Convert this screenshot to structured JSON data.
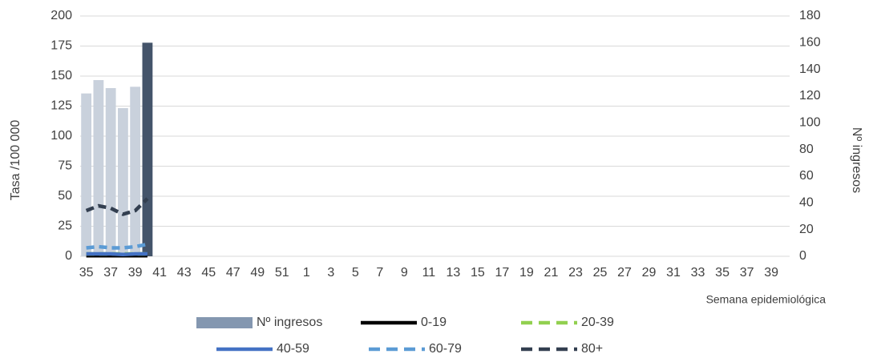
{
  "chart_data": {
    "type": "combo",
    "x_label": "Semana epidemiológica",
    "y_label": "Tasa /100 000",
    "y2_label": "Nº ingresos",
    "categories": [
      "35",
      null,
      "37",
      null,
      "39",
      null,
      "41",
      null,
      "43",
      null,
      "45",
      null,
      "47",
      null,
      "49",
      null,
      "51",
      null,
      "1",
      null,
      "3",
      null,
      "5",
      null,
      "7",
      null,
      "9",
      null,
      "11",
      null,
      "13",
      null,
      "15",
      null,
      "17",
      null,
      "19",
      null,
      "21",
      null,
      "23",
      null,
      "25",
      null,
      "27",
      null,
      "29",
      null,
      "31",
      null,
      "33",
      null,
      "35",
      null,
      "37",
      null,
      "39",
      null
    ],
    "ylim": [
      0,
      200
    ],
    "yticks": [
      0,
      25,
      50,
      75,
      100,
      125,
      150,
      175,
      200
    ],
    "y2lim": [
      0,
      180
    ],
    "y2ticks": [
      0,
      20,
      40,
      60,
      80,
      100,
      120,
      140,
      160,
      180
    ],
    "grid": true,
    "legend": "bottom",
    "series": [
      {
        "name": "Nº ingresos",
        "type": "bar",
        "axis": "y2",
        "color": "#8497b0",
        "colors": [
          "#c9d1dc",
          "#c9d1dc",
          "#c9d1dc",
          "#c9d1dc",
          "#c9d1dc",
          "#44546a"
        ],
        "values": [
          122,
          132,
          126,
          111,
          127,
          160,
          null,
          null,
          null,
          null,
          null,
          null,
          null,
          null,
          null,
          null,
          null,
          null,
          null,
          null,
          null,
          null,
          null,
          null,
          null,
          null,
          null,
          null,
          null,
          null,
          null,
          null,
          null,
          null,
          null,
          null,
          null,
          null,
          null,
          null,
          null,
          null,
          null,
          null,
          null,
          null,
          null,
          null,
          null,
          null,
          null,
          null,
          null,
          null,
          null,
          null,
          null,
          null
        ]
      },
      {
        "name": "0-19",
        "type": "line",
        "dash": false,
        "color": "#000000",
        "values": [
          0.5,
          0.5,
          0.5,
          0.5,
          0.5,
          0.5,
          null,
          null,
          null,
          null,
          null,
          null,
          null,
          null,
          null,
          null,
          null,
          null,
          null,
          null,
          null,
          null,
          null,
          null,
          null,
          null,
          null,
          null,
          null,
          null,
          null,
          null,
          null,
          null,
          null,
          null,
          null,
          null,
          null,
          null,
          null,
          null,
          null,
          null,
          null,
          null,
          null,
          null,
          null,
          null,
          null,
          null,
          null,
          null,
          null,
          null,
          null,
          null
        ]
      },
      {
        "name": "20-39",
        "type": "line",
        "dash": true,
        "color": "#92d050",
        "values": [
          2,
          2,
          2,
          2,
          2,
          2,
          null,
          null,
          null,
          null,
          null,
          null,
          null,
          null,
          null,
          null,
          null,
          null,
          null,
          null,
          null,
          null,
          null,
          null,
          null,
          null,
          null,
          null,
          null,
          null,
          null,
          null,
          null,
          null,
          null,
          null,
          null,
          null,
          null,
          null,
          null,
          null,
          null,
          null,
          null,
          null,
          null,
          null,
          null,
          null,
          null,
          null,
          null,
          null,
          null,
          null,
          null,
          null
        ]
      },
      {
        "name": "40-59",
        "type": "line",
        "dash": false,
        "color": "#4472c4",
        "values": [
          2,
          2,
          2,
          1.5,
          2,
          2,
          null,
          null,
          null,
          null,
          null,
          null,
          null,
          null,
          null,
          null,
          null,
          null,
          null,
          null,
          null,
          null,
          null,
          null,
          null,
          null,
          null,
          null,
          null,
          null,
          null,
          null,
          null,
          null,
          null,
          null,
          null,
          null,
          null,
          null,
          null,
          null,
          null,
          null,
          null,
          null,
          null,
          null,
          null,
          null,
          null,
          null,
          null,
          null,
          null,
          null,
          null,
          null
        ]
      },
      {
        "name": "60-79",
        "type": "line",
        "dash": true,
        "color": "#5b9bd5",
        "values": [
          7,
          8,
          7,
          7,
          8,
          10,
          null,
          null,
          null,
          null,
          null,
          null,
          null,
          null,
          null,
          null,
          null,
          null,
          null,
          null,
          null,
          null,
          null,
          null,
          null,
          null,
          null,
          null,
          null,
          null,
          null,
          null,
          null,
          null,
          null,
          null,
          null,
          null,
          null,
          null,
          null,
          null,
          null,
          null,
          null,
          null,
          null,
          null,
          null,
          null,
          null,
          null,
          null,
          null,
          null,
          null,
          null,
          null
        ]
      },
      {
        "name": "80+",
        "type": "line",
        "dash": true,
        "color": "#333f50",
        "values": [
          38,
          42,
          40,
          35,
          38,
          48,
          null,
          null,
          null,
          null,
          null,
          null,
          null,
          null,
          null,
          null,
          null,
          null,
          null,
          null,
          null,
          null,
          null,
          null,
          null,
          null,
          null,
          null,
          null,
          null,
          null,
          null,
          null,
          null,
          null,
          null,
          null,
          null,
          null,
          null,
          null,
          null,
          null,
          null,
          null,
          null,
          null,
          null,
          null,
          null,
          null,
          null,
          null,
          null,
          null,
          null,
          null,
          null
        ]
      }
    ]
  }
}
